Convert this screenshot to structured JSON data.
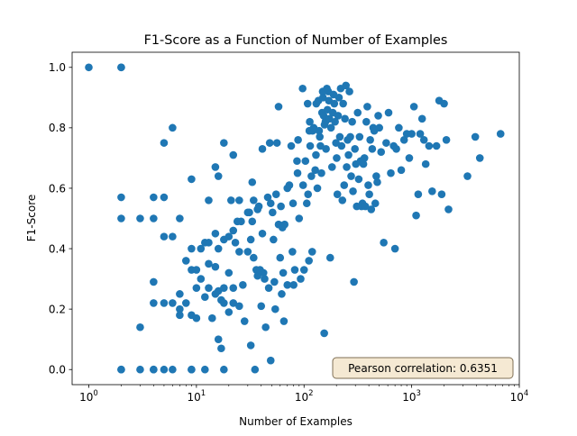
{
  "chart_data": {
    "type": "scatter",
    "title": "F1-Score as a Function of Number of Examples",
    "xlabel": "Number of Examples",
    "ylabel": "F1-Score",
    "xscale": "log",
    "xlim": [
      0.7,
      10000
    ],
    "ylim": [
      -0.05,
      1.05
    ],
    "x_ticks": [
      {
        "value": 1,
        "label": "10",
        "exp": "0"
      },
      {
        "value": 10,
        "label": "10",
        "exp": "1"
      },
      {
        "value": 100,
        "label": "10",
        "exp": "2"
      },
      {
        "value": 1000,
        "label": "10",
        "exp": "3"
      },
      {
        "value": 10000,
        "label": "10",
        "exp": "4"
      }
    ],
    "y_ticks": [
      {
        "value": 0.0,
        "label": "0.0"
      },
      {
        "value": 0.2,
        "label": "0.2"
      },
      {
        "value": 0.4,
        "label": "0.4"
      },
      {
        "value": 0.6,
        "label": "0.6"
      },
      {
        "value": 0.8,
        "label": "0.8"
      },
      {
        "value": 1.0,
        "label": "1.0"
      }
    ],
    "annotation": "Pearson correlation: 0.6351",
    "point_color": "#1f77b4",
    "points": [
      [
        1,
        1.0
      ],
      [
        2,
        1.0
      ],
      [
        2,
        1.0
      ],
      [
        2,
        0.57
      ],
      [
        2,
        0.5
      ],
      [
        2,
        0.0
      ],
      [
        2,
        0.0
      ],
      [
        3,
        0.5
      ],
      [
        3,
        0.14
      ],
      [
        3,
        0.0
      ],
      [
        4,
        0.57
      ],
      [
        4,
        0.5
      ],
      [
        4,
        0.29
      ],
      [
        4,
        0.22
      ],
      [
        4,
        0.0
      ],
      [
        4,
        0.0
      ],
      [
        5,
        0.75
      ],
      [
        5,
        0.57
      ],
      [
        5,
        0.44
      ],
      [
        5,
        0.22
      ],
      [
        5,
        0.0
      ],
      [
        6,
        0.8
      ],
      [
        6,
        0.44
      ],
      [
        6,
        0.22
      ],
      [
        6,
        0.0
      ],
      [
        7,
        0.5
      ],
      [
        7,
        0.25
      ],
      [
        7,
        0.2
      ],
      [
        7,
        0.18
      ],
      [
        8,
        0.36
      ],
      [
        8,
        0.22
      ],
      [
        9,
        0.63
      ],
      [
        9,
        0.4
      ],
      [
        9,
        0.33
      ],
      [
        9,
        0.18
      ],
      [
        9,
        0.0
      ],
      [
        9,
        0.0
      ],
      [
        10,
        0.33
      ],
      [
        10,
        0.27
      ],
      [
        10,
        0.17
      ],
      [
        11,
        0.4
      ],
      [
        11,
        0.3
      ],
      [
        12,
        0.42
      ],
      [
        12,
        0.24
      ],
      [
        12,
        0.0
      ],
      [
        13,
        0.56
      ],
      [
        13,
        0.42
      ],
      [
        13,
        0.35
      ],
      [
        13,
        0.27
      ],
      [
        14,
        0.17
      ],
      [
        15,
        0.67
      ],
      [
        15,
        0.45
      ],
      [
        15,
        0.34
      ],
      [
        15,
        0.25
      ],
      [
        16,
        0.64
      ],
      [
        16,
        0.4
      ],
      [
        16,
        0.26
      ],
      [
        16,
        0.1
      ],
      [
        17,
        0.23
      ],
      [
        17,
        0.07
      ],
      [
        18,
        0.75
      ],
      [
        18,
        0.43
      ],
      [
        18,
        0.27
      ],
      [
        18,
        0.22
      ],
      [
        18,
        0.0
      ],
      [
        20,
        0.44
      ],
      [
        20,
        0.32
      ],
      [
        20,
        0.19
      ],
      [
        21,
        0.56
      ],
      [
        22,
        0.71
      ],
      [
        22,
        0.46
      ],
      [
        22,
        0.27
      ],
      [
        22,
        0.22
      ],
      [
        23,
        0.42
      ],
      [
        24,
        0.49
      ],
      [
        25,
        0.56
      ],
      [
        25,
        0.39
      ],
      [
        25,
        0.21
      ],
      [
        26,
        0.49
      ],
      [
        27,
        0.28
      ],
      [
        28,
        0.16
      ],
      [
        30,
        0.52
      ],
      [
        30,
        0.39
      ],
      [
        31,
        0.52
      ],
      [
        32,
        0.43
      ],
      [
        32,
        0.08
      ],
      [
        33,
        0.62
      ],
      [
        33,
        0.49
      ],
      [
        34,
        0.56
      ],
      [
        34,
        0.37
      ],
      [
        35,
        0.0
      ],
      [
        36,
        0.33
      ],
      [
        37,
        0.53
      ],
      [
        37,
        0.31
      ],
      [
        38,
        0.54
      ],
      [
        39,
        0.33
      ],
      [
        40,
        0.21
      ],
      [
        41,
        0.73
      ],
      [
        41,
        0.45
      ],
      [
        42,
        0.32
      ],
      [
        43,
        0.3
      ],
      [
        44,
        0.14
      ],
      [
        46,
        0.57
      ],
      [
        47,
        0.27
      ],
      [
        48,
        0.75
      ],
      [
        49,
        0.55
      ],
      [
        49,
        0.03
      ],
      [
        51,
        0.52
      ],
      [
        52,
        0.43
      ],
      [
        53,
        0.29
      ],
      [
        54,
        0.2
      ],
      [
        55,
        0.58
      ],
      [
        56,
        0.75
      ],
      [
        58,
        0.87
      ],
      [
        58,
        0.48
      ],
      [
        60,
        0.37
      ],
      [
        61,
        0.54
      ],
      [
        62,
        0.25
      ],
      [
        63,
        0.47
      ],
      [
        64,
        0.32
      ],
      [
        65,
        0.16
      ],
      [
        66,
        0.48
      ],
      [
        70,
        0.6
      ],
      [
        70,
        0.28
      ],
      [
        73,
        0.61
      ],
      [
        76,
        0.74
      ],
      [
        78,
        0.39
      ],
      [
        79,
        0.55
      ],
      [
        80,
        0.28
      ],
      [
        82,
        0.33
      ],
      [
        86,
        0.69
      ],
      [
        87,
        0.65
      ],
      [
        88,
        0.76
      ],
      [
        90,
        0.5
      ],
      [
        93,
        0.3
      ],
      [
        97,
        0.93
      ],
      [
        98,
        0.61
      ],
      [
        100,
        0.33
      ],
      [
        103,
        0.69
      ],
      [
        106,
        0.55
      ],
      [
        108,
        0.88
      ],
      [
        109,
        0.58
      ],
      [
        111,
        0.36
      ],
      [
        112,
        0.79
      ],
      [
        113,
        0.82
      ],
      [
        114,
        0.74
      ],
      [
        117,
        0.64
      ],
      [
        119,
        0.39
      ],
      [
        120,
        0.79
      ],
      [
        123,
        0.8
      ],
      [
        127,
        0.66
      ],
      [
        129,
        0.71
      ],
      [
        130,
        0.88
      ],
      [
        133,
        0.6
      ],
      [
        136,
        0.89
      ],
      [
        138,
        0.79
      ],
      [
        140,
        0.77
      ],
      [
        142,
        0.74
      ],
      [
        145,
        0.65
      ],
      [
        147,
        0.85
      ],
      [
        149,
        0.92
      ],
      [
        150,
        0.9
      ],
      [
        152,
        0.84
      ],
      [
        154,
        0.12
      ],
      [
        155,
        0.81
      ],
      [
        158,
        0.82
      ],
      [
        160,
        0.73
      ],
      [
        163,
        0.93
      ],
      [
        165,
        0.86
      ],
      [
        168,
        0.92
      ],
      [
        170,
        0.89
      ],
      [
        172,
        0.83
      ],
      [
        175,
        0.37
      ],
      [
        178,
        0.8
      ],
      [
        182,
        0.67
      ],
      [
        185,
        0.85
      ],
      [
        188,
        0.91
      ],
      [
        191,
        0.88
      ],
      [
        194,
        0.82
      ],
      [
        198,
        0.75
      ],
      [
        201,
        0.7
      ],
      [
        204,
        0.58
      ],
      [
        207,
        0.84
      ],
      [
        211,
        0.9
      ],
      [
        215,
        0.77
      ],
      [
        219,
        0.93
      ],
      [
        223,
        0.74
      ],
      [
        227,
        0.56
      ],
      [
        231,
        0.88
      ],
      [
        236,
        0.61
      ],
      [
        240,
        0.83
      ],
      [
        245,
        0.94
      ],
      [
        249,
        0.67
      ],
      [
        254,
        0.76
      ],
      [
        259,
        0.71
      ],
      [
        264,
        0.92
      ],
      [
        269,
        0.77
      ],
      [
        274,
        0.64
      ],
      [
        280,
        0.82
      ],
      [
        285,
        0.59
      ],
      [
        291,
        0.29
      ],
      [
        297,
        0.73
      ],
      [
        303,
        0.68
      ],
      [
        309,
        0.54
      ],
      [
        315,
        0.85
      ],
      [
        322,
        0.63
      ],
      [
        328,
        0.77
      ],
      [
        335,
        0.69
      ],
      [
        342,
        0.54
      ],
      [
        349,
        0.55
      ],
      [
        356,
        0.68
      ],
      [
        364,
        0.7
      ],
      [
        371,
        0.54
      ],
      [
        379,
        0.82
      ],
      [
        387,
        0.87
      ],
      [
        395,
        0.61
      ],
      [
        404,
        0.58
      ],
      [
        412,
        0.76
      ],
      [
        421,
        0.53
      ],
      [
        430,
        0.73
      ],
      [
        439,
        0.8
      ],
      [
        449,
        0.79
      ],
      [
        459,
        0.55
      ],
      [
        469,
        0.64
      ],
      [
        479,
        0.62
      ],
      [
        489,
        0.84
      ],
      [
        500,
        0.8
      ],
      [
        520,
        0.72
      ],
      [
        550,
        0.42
      ],
      [
        580,
        0.75
      ],
      [
        610,
        0.85
      ],
      [
        640,
        0.65
      ],
      [
        680,
        0.74
      ],
      [
        700,
        0.4
      ],
      [
        720,
        0.73
      ],
      [
        760,
        0.8
      ],
      [
        800,
        0.66
      ],
      [
        850,
        0.76
      ],
      [
        900,
        0.78
      ],
      [
        950,
        0.7
      ],
      [
        1000,
        0.78
      ],
      [
        1050,
        0.87
      ],
      [
        1100,
        0.51
      ],
      [
        1150,
        0.58
      ],
      [
        1200,
        0.78
      ],
      [
        1250,
        0.83
      ],
      [
        1300,
        0.76
      ],
      [
        1350,
        0.68
      ],
      [
        1450,
        0.74
      ],
      [
        1550,
        0.59
      ],
      [
        1700,
        0.74
      ],
      [
        1800,
        0.89
      ],
      [
        1900,
        0.58
      ],
      [
        2000,
        0.88
      ],
      [
        2100,
        0.76
      ],
      [
        2200,
        0.53
      ],
      [
        3300,
        0.64
      ],
      [
        3900,
        0.77
      ],
      [
        4300,
        0.7
      ],
      [
        6700,
        0.78
      ]
    ]
  }
}
